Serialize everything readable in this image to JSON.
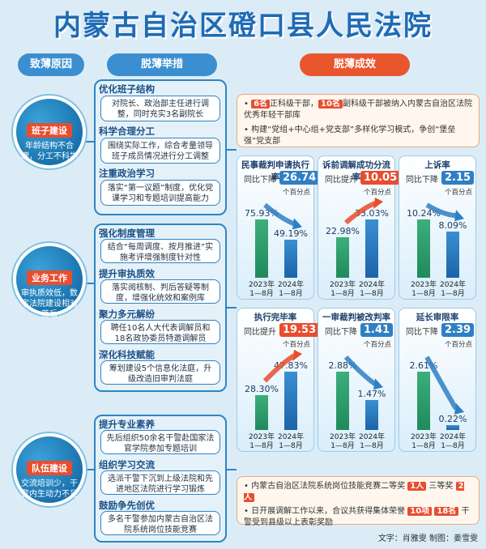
{
  "title": "内蒙古自治区磴口县人民法院",
  "columns": {
    "causes": "致薄原因",
    "measures": "脱薄举措",
    "results": "脱薄成效"
  },
  "sections": [
    {
      "circle_title": "班子建设",
      "circle_desc": "年龄结构不合理，分工不科学",
      "items": [
        {
          "title": "优化班子结构",
          "desc": "对院长、政治部主任进行调整，同时充实3名副院长"
        },
        {
          "title": "科学合理分工",
          "desc": "围绕实际工作，综合考量领导班子成员情况进行分工调整"
        },
        {
          "title": "注重政治学习",
          "desc": "落实“第一议题”制度，优化党课学习和专题培训提高能力"
        }
      ]
    },
    {
      "circle_title": "业务工作",
      "circle_desc": "审执质效低，数字法院建设相对落后",
      "items": [
        {
          "title": "强化制度管理",
          "desc": "结合“每周调度、按月推进”实施考评增强制度针对性"
        },
        {
          "title": "提升审执质效",
          "desc": "落实阅核制、判后答疑等制度，增强化统效和案例库"
        },
        {
          "title": "聚力多元解纷",
          "desc": "聘任10名人大代表调解员和18名政协委员特邀调解员"
        },
        {
          "title": "深化科技赋能",
          "desc": "筹划建设5个信息化法庭，升级改造旧审判法庭"
        }
      ]
    },
    {
      "circle_title": "队伍建设",
      "circle_desc": "交流培训少，干警内生动力不足",
      "items": [
        {
          "title": "提升专业素养",
          "desc": "先后组织50余名干警赴国家法官学院参加专题培训"
        },
        {
          "title": "组织学习交流",
          "desc": "选派干警下沉到上级法院和先进地区法院进行学习锻炼"
        },
        {
          "title": "鼓励争先创优",
          "desc": "多名干警参加内蒙古自治区法院系统岗位技能竞赛"
        }
      ]
    }
  ],
  "results_top": [
    {
      "pre": "",
      "chip": "6名",
      "mid": "正科级干部，",
      "chip2": "10名",
      "post": "副科级干部被纳入内蒙古自治区法院优秀年轻干部库"
    },
    {
      "pre": "",
      "chip": "",
      "mid": "",
      "chip2": "",
      "post": "构建“党组+中心组+党支部”多样化学习模式，争创“堡垒强”党支部"
    }
  ],
  "results_bottom": [
    {
      "pre": "内蒙古自治区法院系统岗位技能竞赛二等奖",
      "chip": "1人",
      "mid": "三等奖",
      "chip2": "2人",
      "post": ""
    },
    {
      "pre": "日开展调解工作以来，合议共获得集体荣誉",
      "chip": "10项",
      "mid": "",
      "chip2": "18名",
      "post": "干警受到县级以上表彰奖励"
    }
  ],
  "charts": [
    {
      "title": "民事裁判申请执行率",
      "direction": "同比下降",
      "change": "26.74",
      "unit": "个百分点",
      "trend": "down",
      "categories": [
        "2023年\n1—8月",
        "2024年\n1—8月"
      ],
      "values": [
        75.93,
        49.19
      ],
      "labels": [
        "75.93%",
        "49.19%"
      ]
    },
    {
      "title": "诉前调解成功分流率",
      "direction": "同比提升",
      "change": "10.05",
      "unit": "个百分点",
      "trend": "up",
      "categories": [
        "2023年\n1—8月",
        "2024年\n1—8月"
      ],
      "values": [
        22.98,
        33.03
      ],
      "labels": [
        "22.98%",
        "33.03%"
      ]
    },
    {
      "title": "上诉率",
      "direction": "同比下降",
      "change": "2.15",
      "unit": "个百分点",
      "trend": "down",
      "categories": [
        "2023年\n1—8月",
        "2024年\n1—8月"
      ],
      "values": [
        10.24,
        8.09
      ],
      "labels": [
        "10.24%",
        "8.09%"
      ]
    },
    {
      "title": "执行完毕率",
      "direction": "同比提升",
      "change": "19.53",
      "unit": "个百分点",
      "trend": "up",
      "categories": [
        "2023年\n1—8月",
        "2024年\n1—8月"
      ],
      "values": [
        28.3,
        47.83
      ],
      "labels": [
        "28.30%",
        "47.83%"
      ]
    },
    {
      "title": "一审裁判被改判率",
      "direction": "同比下降",
      "change": "1.41",
      "unit": "个百分点",
      "trend": "down",
      "categories": [
        "2023年\n1—8月",
        "2024年\n1—8月"
      ],
      "values": [
        2.88,
        1.47
      ],
      "labels": [
        "2.88%",
        "1.47%"
      ]
    },
    {
      "title": "延长审限率",
      "direction": "同比下降",
      "change": "2.39",
      "unit": "个百分点",
      "trend": "down",
      "categories": [
        "2023年\n1—8月",
        "2024年\n1—8月"
      ],
      "values": [
        2.61,
        0.22
      ],
      "labels": [
        "2.61%",
        "0.22%"
      ]
    }
  ],
  "credit": "文字：肖雅雯 制图：姜雪雯",
  "colors": {
    "blue": "#1f6bb5",
    "orange": "#e84d2e",
    "up": "#e84d2e",
    "down": "#2f7fc4"
  }
}
